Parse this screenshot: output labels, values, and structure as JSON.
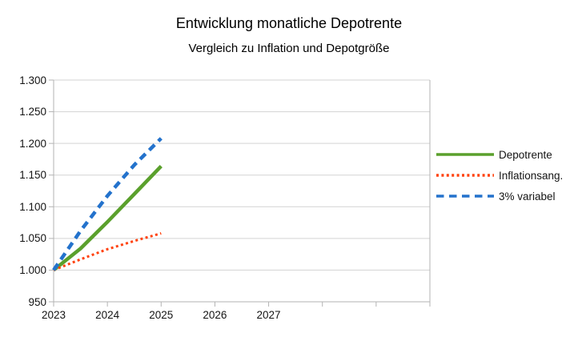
{
  "title": "Entwicklung monatliche Depotrente",
  "subtitle": "Vergleich zu Inflation und Depotgröße",
  "chart_data": {
    "type": "line",
    "title": "Entwicklung monatliche Depotrente",
    "subtitle": "Vergleich zu Inflation und Depotgröße",
    "x": [
      2023,
      2023.5,
      2024,
      2024.5,
      2025
    ],
    "series": [
      {
        "name": "Depotrente",
        "color": "#5aa02c",
        "style": "solid",
        "width": 4.5,
        "values": [
          1000,
          1034,
          1076,
          1120,
          1164
        ]
      },
      {
        "name": "Inflationsang.",
        "color": "#ff420e",
        "style": "dotted",
        "width": 3,
        "values": [
          1000,
          1017,
          1033,
          1046,
          1058
        ]
      },
      {
        "name": "3% variabel",
        "color": "#2372cc",
        "style": "dashed",
        "width": 4.5,
        "values": [
          1000,
          1062,
          1117,
          1166,
          1208
        ]
      }
    ],
    "xlabel": "",
    "ylabel": "",
    "xlim": [
      2023,
      2030
    ],
    "ylim": [
      950,
      1300
    ],
    "x_ticks": [
      {
        "value": 2023,
        "label": "2023"
      },
      {
        "value": 2024,
        "label": "2024"
      },
      {
        "value": 2025,
        "label": "2025"
      },
      {
        "value": 2026,
        "label": "2026"
      },
      {
        "value": 2027,
        "label": "2027"
      },
      {
        "value": 2028,
        "label": ""
      },
      {
        "value": 2029,
        "label": ""
      }
    ],
    "y_ticks": [
      {
        "value": 950,
        "label": "950"
      },
      {
        "value": 1000,
        "label": "1.000"
      },
      {
        "value": 1050,
        "label": "1.050"
      },
      {
        "value": 1100,
        "label": "1.100"
      },
      {
        "value": 1150,
        "label": "1.150"
      },
      {
        "value": 1200,
        "label": "1.200"
      },
      {
        "value": 1250,
        "label": "1.250"
      },
      {
        "value": 1300,
        "label": "1.300"
      }
    ],
    "grid": true,
    "legend_position": "right",
    "colors": {
      "gridline": "#d3d3d3",
      "axis": "#b3b3b3",
      "text": "#141414",
      "background": "#ffffff"
    }
  }
}
